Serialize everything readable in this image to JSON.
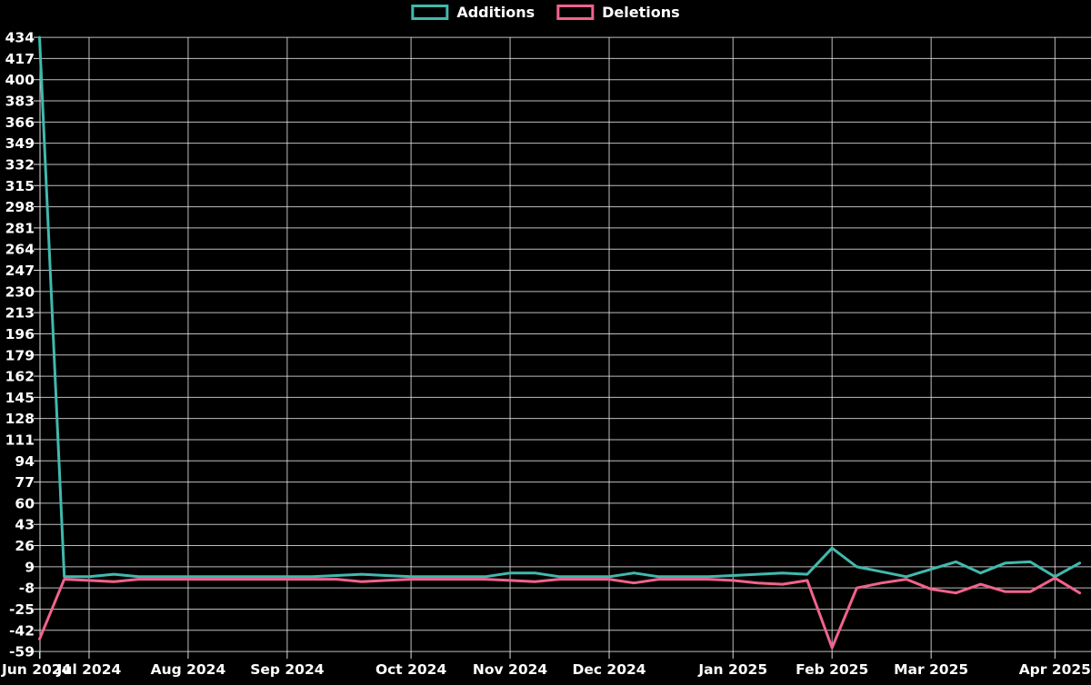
{
  "legend": {
    "items": [
      {
        "label": "Additions",
        "color": "#41b9ae"
      },
      {
        "label": "Deletions",
        "color": "#f2638c"
      }
    ]
  },
  "chart_data": {
    "type": "line",
    "title": "",
    "xlabel": "",
    "ylabel": "",
    "background": "#000000",
    "grid": true,
    "grid_color": "#e8e8e8",
    "text_color": "#ffffff",
    "legend_position": "top-center",
    "ylim": [
      -59,
      434
    ],
    "y_ticks": [
      -59,
      -42,
      -25,
      -8,
      9,
      26,
      43,
      60,
      77,
      94,
      111,
      128,
      145,
      162,
      179,
      196,
      213,
      230,
      247,
      264,
      281,
      298,
      315,
      332,
      349,
      366,
      383,
      400,
      417,
      434
    ],
    "x_ticks": [
      {
        "label": "Jun 2024",
        "week": 0
      },
      {
        "label": "Jul 2024",
        "week": 2
      },
      {
        "label": "Aug 2024",
        "week": 6
      },
      {
        "label": "Sep 2024",
        "week": 10
      },
      {
        "label": "Oct 2024",
        "week": 15
      },
      {
        "label": "Nov 2024",
        "week": 19
      },
      {
        "label": "Dec 2024",
        "week": 23
      },
      {
        "label": "Jan 2025",
        "week": 28
      },
      {
        "label": "Feb 2025",
        "week": 32
      },
      {
        "label": "Mar 2025",
        "week": 36
      },
      {
        "label": "Apr 2025",
        "week": 41
      }
    ],
    "x": [
      "2024-06-17",
      "2024-06-24",
      "2024-07-01",
      "2024-07-08",
      "2024-07-15",
      "2024-07-22",
      "2024-07-29",
      "2024-08-05",
      "2024-08-12",
      "2024-08-19",
      "2024-08-26",
      "2024-09-02",
      "2024-09-09",
      "2024-09-16",
      "2024-09-23",
      "2024-09-30",
      "2024-10-07",
      "2024-10-14",
      "2024-10-21",
      "2024-10-28",
      "2024-11-04",
      "2024-11-11",
      "2024-11-18",
      "2024-11-25",
      "2024-12-02",
      "2024-12-09",
      "2024-12-16",
      "2024-12-23",
      "2024-12-30",
      "2025-01-06",
      "2025-01-13",
      "2025-01-20",
      "2025-01-27",
      "2025-02-03",
      "2025-02-10",
      "2025-02-17",
      "2025-02-24",
      "2025-03-03",
      "2025-03-10",
      "2025-03-17",
      "2025-03-24",
      "2025-03-31",
      "2025-04-07"
    ],
    "series": [
      {
        "name": "Additions",
        "color": "#41b9ae",
        "values": [
          434,
          1,
          1,
          3,
          1,
          1,
          1,
          1,
          1,
          1,
          1,
          1,
          2,
          3,
          2,
          1,
          1,
          1,
          1,
          4,
          4,
          1,
          1,
          1,
          4,
          1,
          1,
          1,
          2,
          3,
          4,
          3,
          24,
          9,
          5,
          1,
          7,
          13,
          4,
          12,
          13,
          1,
          12
        ]
      },
      {
        "name": "Deletions",
        "color": "#f2638c",
        "values": [
          -49,
          -1,
          -2,
          -3,
          -1,
          -1,
          -1,
          -1,
          -1,
          -1,
          -1,
          -1,
          -1,
          -3,
          -2,
          -1,
          -1,
          -1,
          -1,
          -2,
          -3,
          -1,
          -1,
          -1,
          -4,
          -1,
          -1,
          -1,
          -2,
          -4,
          -5,
          -2,
          -56,
          -8,
          -4,
          -1,
          -9,
          -12,
          -5,
          -11,
          -11,
          0,
          -12
        ]
      }
    ]
  }
}
